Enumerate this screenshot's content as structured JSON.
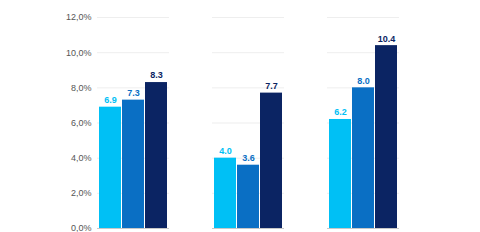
{
  "chart_data": {
    "type": "bar",
    "categories": [
      null,
      null,
      null
    ],
    "series": [
      {
        "color": "#00c0f5",
        "values": [
          6.9,
          4.0,
          6.2
        ],
        "value_labels": [
          "6.9",
          "4.0",
          "6.2"
        ]
      },
      {
        "color": "#0a6fc4",
        "values": [
          7.3,
          3.6,
          8.0
        ],
        "value_labels": [
          "7.3",
          "3.6",
          "8.0"
        ]
      },
      {
        "color": "#0b2463",
        "values": [
          8.3,
          7.7,
          10.4
        ],
        "value_labels": [
          "8.3",
          "7.7",
          "10.4"
        ]
      }
    ],
    "ylim": [
      0,
      12
    ],
    "yticks": [
      {
        "value": 0,
        "label": "0,0%"
      },
      {
        "value": 2,
        "label": "2,0%"
      },
      {
        "value": 4,
        "label": "4,0%"
      },
      {
        "value": 6,
        "label": "6,0%"
      },
      {
        "value": 8,
        "label": "8,0%"
      },
      {
        "value": 10,
        "label": "10,0%"
      },
      {
        "value": 12,
        "label": "12,0%"
      }
    ],
    "grid": true,
    "data_labels": true,
    "tick_labels": "y"
  }
}
